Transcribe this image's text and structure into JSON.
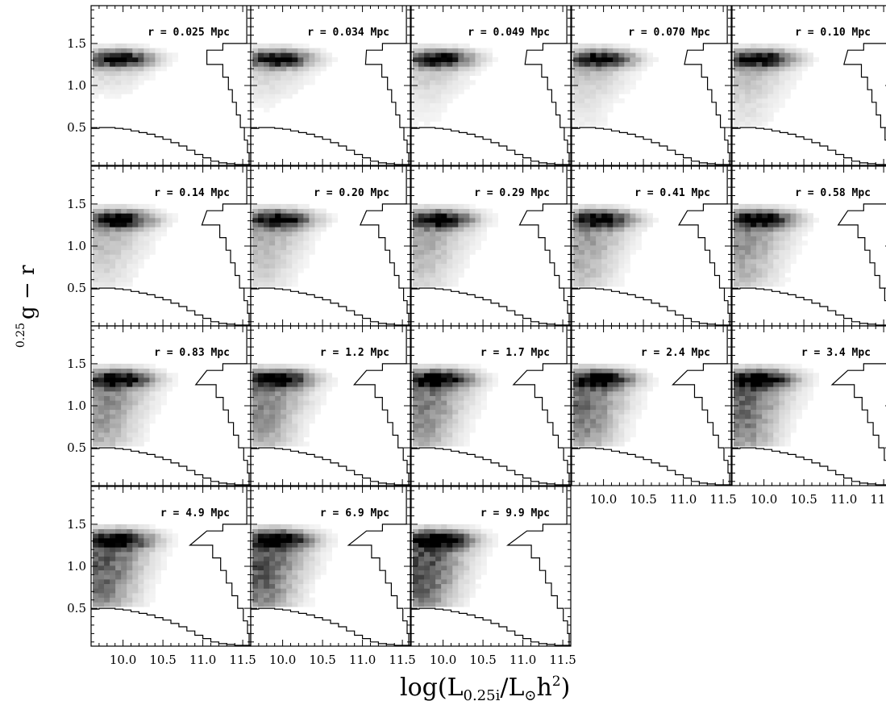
{
  "chart_data": {
    "type": "heatmap",
    "title": "",
    "xlabel_main": "log(L",
    "xlabel_sub": "0.25i",
    "xlabel_rest": "/L",
    "xlabel_sun": "⊙",
    "xlabel_h": "h",
    "xlabel_sup": "2",
    "xlabel_close": ")",
    "ylabel_sup": "0.25",
    "ylabel_main": "g − r",
    "xlim": [
      9.6,
      11.6
    ],
    "ylim": [
      0.05,
      1.95
    ],
    "xticks": [
      "10.0",
      "10.5",
      "11.0",
      "11.5"
    ],
    "yticks": [
      "0.5",
      "1.0",
      "1.5"
    ],
    "panels": [
      {
        "label": "r = 0.025 Mpc",
        "density": 0.0
      },
      {
        "label": "r = 0.034 Mpc",
        "density": 0.05
      },
      {
        "label": "r = 0.049 Mpc",
        "density": 0.1
      },
      {
        "label": "r = 0.070 Mpc",
        "density": 0.15
      },
      {
        "label": "r = 0.10 Mpc",
        "density": 0.2
      },
      {
        "label": "r = 0.14 Mpc",
        "density": 0.26
      },
      {
        "label": "r = 0.20 Mpc",
        "density": 0.32
      },
      {
        "label": "r = 0.29 Mpc",
        "density": 0.38
      },
      {
        "label": "r = 0.41 Mpc",
        "density": 0.44
      },
      {
        "label": "r = 0.58 Mpc",
        "density": 0.5
      },
      {
        "label": "r = 0.83 Mpc",
        "density": 0.58
      },
      {
        "label": "r = 1.2 Mpc",
        "density": 0.64
      },
      {
        "label": "r = 1.7 Mpc",
        "density": 0.7
      },
      {
        "label": "r = 2.4 Mpc",
        "density": 0.76
      },
      {
        "label": "r = 3.4 Mpc",
        "density": 0.82
      },
      {
        "label": "r = 4.9 Mpc",
        "density": 0.88
      },
      {
        "label": "r = 6.9 Mpc",
        "density": 0.94
      },
      {
        "label": "r = 9.9 Mpc",
        "density": 1.0
      }
    ],
    "red_sequence_color": 1.32,
    "blue_cloud_color": 0.75,
    "peak_log_luminosity": 9.95,
    "right_histogram": [
      [
        1.95,
        11.55
      ],
      [
        1.5,
        11.55
      ],
      [
        1.5,
        11.25
      ],
      [
        1.42,
        11.25
      ],
      [
        1.42,
        11.05
      ],
      [
        1.25,
        11.05
      ],
      [
        1.25,
        11.25
      ],
      [
        1.1,
        11.25
      ],
      [
        1.1,
        11.32
      ],
      [
        0.95,
        11.32
      ],
      [
        0.95,
        11.37
      ],
      [
        0.8,
        11.37
      ],
      [
        0.8,
        11.42
      ],
      [
        0.65,
        11.42
      ],
      [
        0.65,
        11.47
      ],
      [
        0.5,
        11.47
      ],
      [
        0.5,
        11.52
      ],
      [
        0.35,
        11.52
      ],
      [
        0.35,
        11.56
      ],
      [
        0.2,
        11.56
      ],
      [
        0.2,
        11.58
      ],
      [
        0.05,
        11.58
      ]
    ],
    "bottom_histogram": [
      [
        9.6,
        0.49
      ],
      [
        9.7,
        0.5
      ],
      [
        9.8,
        0.5
      ],
      [
        9.9,
        0.49
      ],
      [
        10.0,
        0.48
      ],
      [
        10.1,
        0.46
      ],
      [
        10.2,
        0.44
      ],
      [
        10.3,
        0.42
      ],
      [
        10.4,
        0.39
      ],
      [
        10.5,
        0.36
      ],
      [
        10.6,
        0.32
      ],
      [
        10.7,
        0.28
      ],
      [
        10.8,
        0.23
      ],
      [
        10.9,
        0.18
      ],
      [
        11.0,
        0.14
      ],
      [
        11.1,
        0.1
      ],
      [
        11.2,
        0.08
      ],
      [
        11.3,
        0.07
      ],
      [
        11.4,
        0.06
      ],
      [
        11.5,
        0.06
      ]
    ]
  }
}
